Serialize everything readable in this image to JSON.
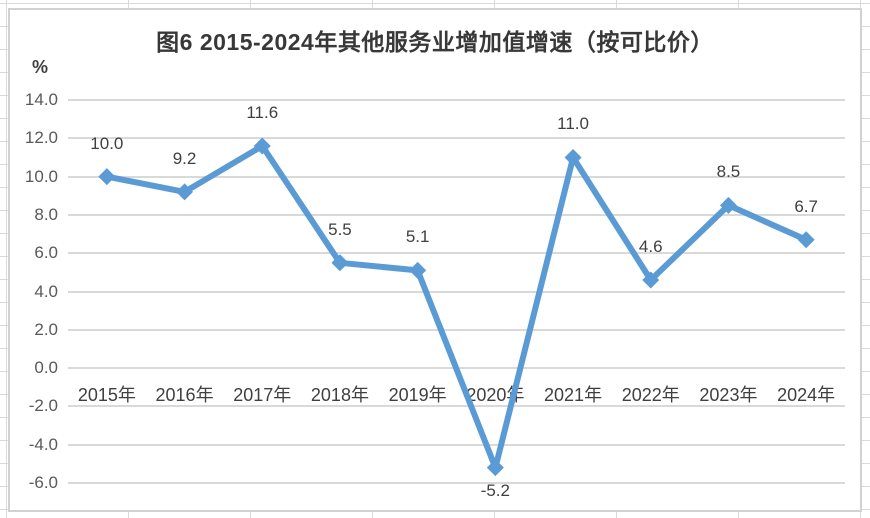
{
  "chart_data": {
    "type": "line",
    "title": "图6 2015-2024年其他服务业增加值增速（按可比价）",
    "unit_label": "%",
    "categories": [
      "2015年",
      "2016年",
      "2017年",
      "2018年",
      "2019年",
      "2020年",
      "2021年",
      "2022年",
      "2023年",
      "2024年"
    ],
    "series": [
      {
        "values": [
          10.0,
          9.2,
          11.6,
          5.5,
          5.1,
          -5.2,
          11.0,
          4.6,
          8.5,
          6.7
        ],
        "data_labels": [
          "10.0",
          "9.2",
          "11.6",
          "5.5",
          "5.1",
          "-5.2",
          "11.0",
          "4.6",
          "8.5",
          "6.7"
        ]
      }
    ],
    "xlabel": "",
    "ylabel": "%",
    "ylim": [
      -6.0,
      14.0
    ],
    "ytick_step": 2.0,
    "ytick_labels": [
      "14.0",
      "12.0",
      "10.0",
      "8.0",
      "6.0",
      "4.0",
      "2.0",
      "0.0",
      "-2.0",
      "-4.0",
      "-6.0"
    ],
    "grid": true,
    "legend": "none",
    "marker": "diamond",
    "colors": {
      "line": "#5B9BD5",
      "marker": "#5B9BD5",
      "gridline": "#D9D9D9",
      "chart_border": "#D2D2D2",
      "sheet_gridline": "#D9D9D9",
      "title_text": "#383838",
      "axis_tick_text": "#595959",
      "category_text": "#3F3F3F",
      "data_label_text": "#404040",
      "background": "#FFFFFF"
    }
  }
}
